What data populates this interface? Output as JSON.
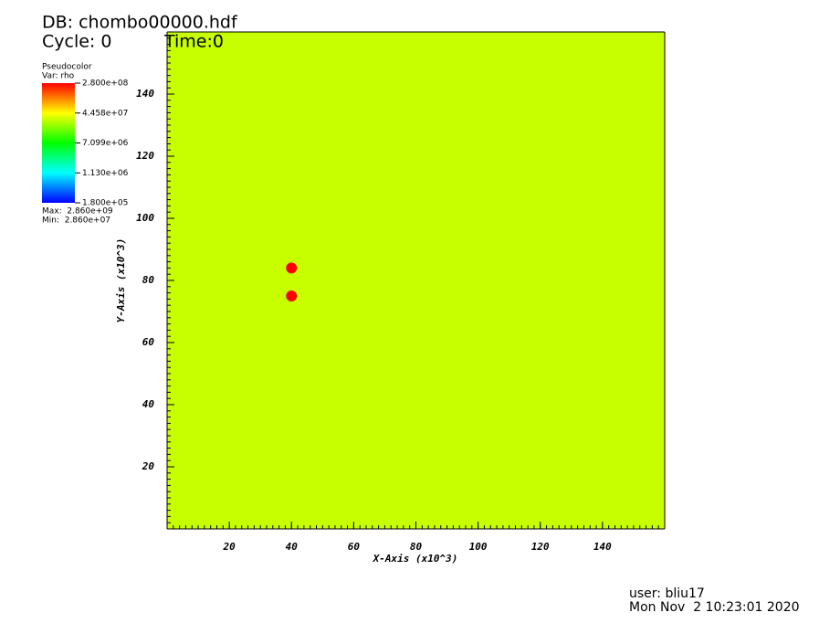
{
  "chart_data": {
    "type": "pseudocolor",
    "title": "DB: chombo00000.hdf",
    "cycle": "Cycle: 0",
    "time": "Time:0",
    "xlabel": "X-Axis (x10^3)",
    "ylabel": "Y-Axis (x10^3)",
    "xlim": [
      0,
      160
    ],
    "ylim": [
      0,
      160
    ],
    "xticks": [
      20,
      40,
      60,
      80,
      100,
      120,
      140
    ],
    "yticks": [
      20,
      40,
      60,
      80,
      100,
      120,
      140
    ],
    "field_color": "#c8ff00",
    "points": {
      "x": [
        40,
        40
      ],
      "y": [
        84,
        75
      ],
      "color": "#ff0000"
    },
    "legend": {
      "title": "Pseudocolor",
      "var": "Var: rho",
      "log": true,
      "clim": [
        180000,
        280000000
      ],
      "colors": [
        "#0000ff",
        "#00ffff",
        "#00ff00",
        "#ffff00",
        "#ff0000"
      ],
      "ticks": [
        {
          "value": 280000000,
          "label": "2.800e+08"
        },
        {
          "value": 44580000,
          "label": "4.458e+07"
        },
        {
          "value": 7099000,
          "label": "7.099e+06"
        },
        {
          "value": 1130000,
          "label": "1.130e+06"
        },
        {
          "value": 180000,
          "label": "1.800e+05"
        }
      ],
      "max": "Max:  2.860e+09",
      "min": "Min:  2.860e+07"
    },
    "user": "user: bliu17",
    "date": "Mon Nov  2 10:23:01 2020"
  }
}
